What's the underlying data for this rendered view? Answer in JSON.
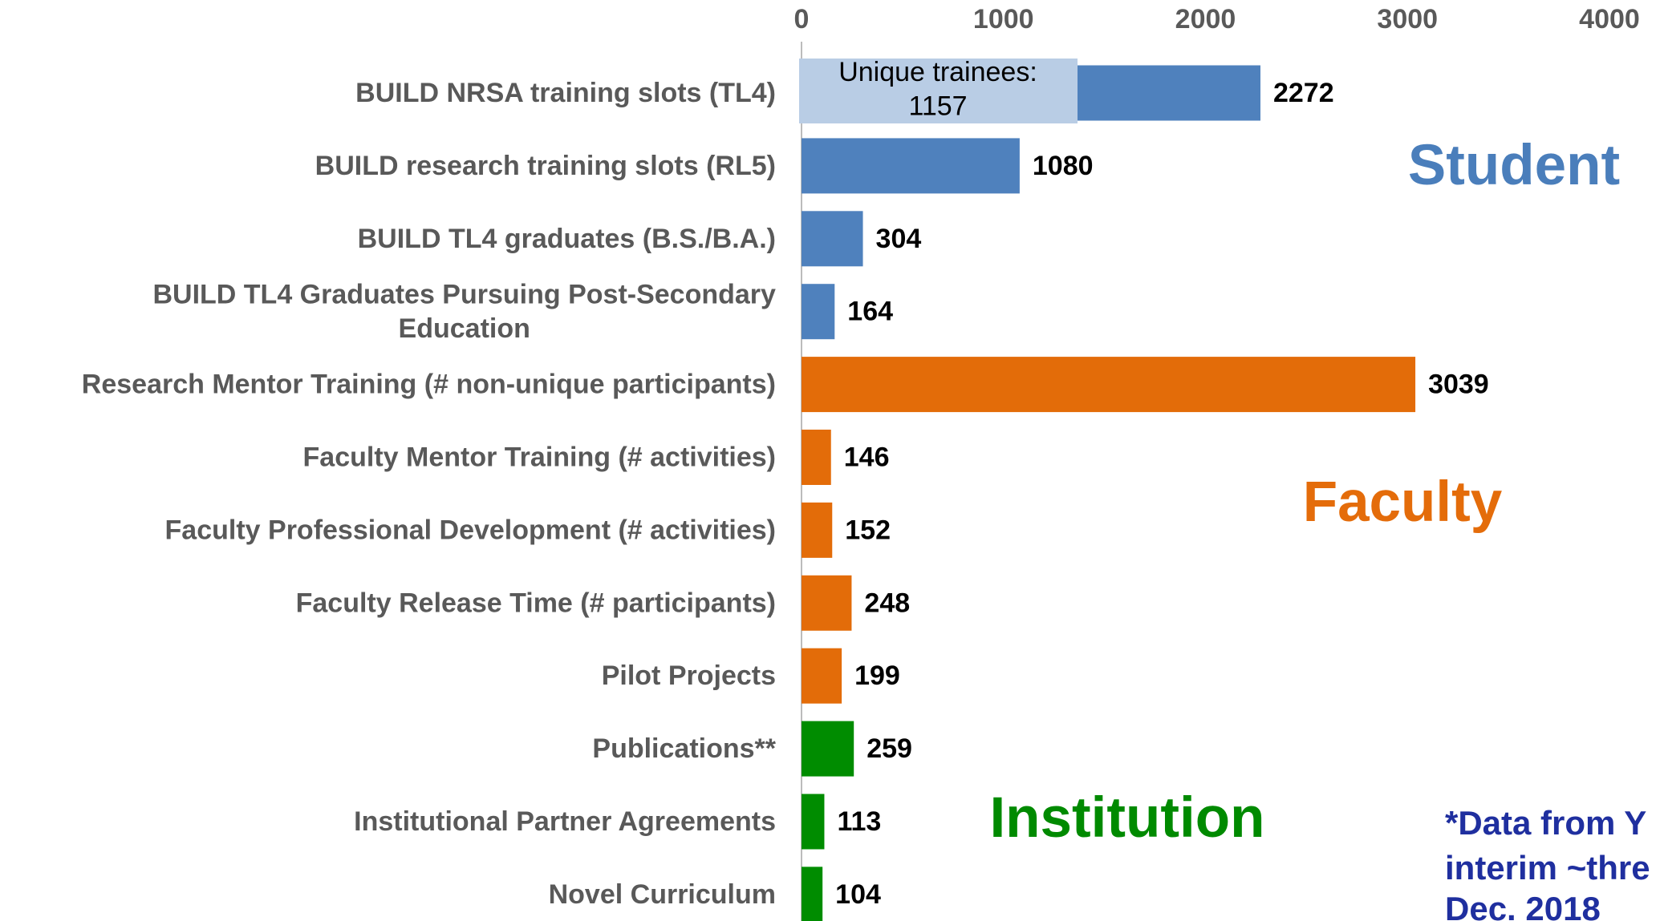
{
  "chart_data": {
    "type": "barh",
    "categories": [
      "BUILD NRSA training slots (TL4)",
      "BUILD research training slots (RL5)",
      "BUILD TL4 graduates (B.S./B.A.)",
      "BUILD TL4 Graduates Pursuing Post-Secondary\nEducation",
      "Research Mentor Training (# non-unique participants)",
      "Faculty Mentor Training (# activities)",
      "Faculty Professional Development (# activities)",
      "Faculty Release Time (# participants)",
      "Pilot Projects",
      "Publications**",
      "Institutional Partner Agreements",
      "Novel Curriculum"
    ],
    "values": [
      2272,
      1080,
      304,
      164,
      3039,
      146,
      152,
      248,
      199,
      259,
      113,
      104
    ],
    "colors": [
      "#4f81bd",
      "#4f81bd",
      "#4f81bd",
      "#4f81bd",
      "#e36c09",
      "#e36c09",
      "#e36c09",
      "#e36c09",
      "#e36c09",
      "#008c00",
      "#008c00",
      "#008c00"
    ],
    "xlim": [
      0,
      4000
    ],
    "xticks": [
      0,
      1000,
      2000,
      3000,
      4000
    ],
    "annotations": [
      "Unique trainees:\n1157",
      "Student",
      "Faculty",
      "Institution",
      "*Data from Y",
      "interim ~thre",
      "Dec. 2018"
    ]
  }
}
